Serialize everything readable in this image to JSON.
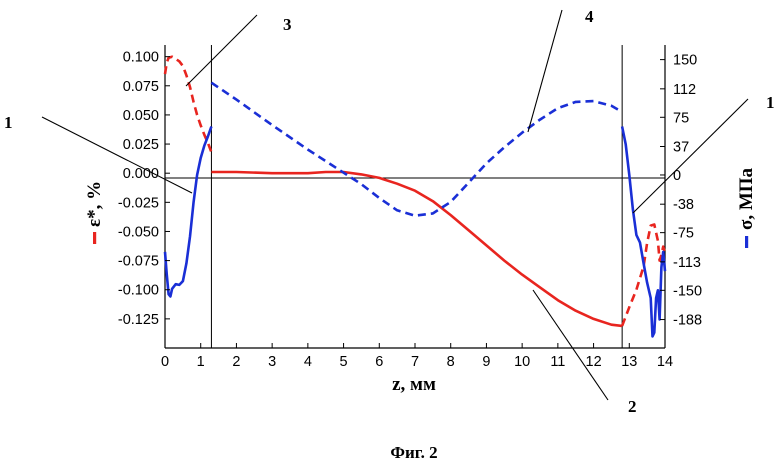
{
  "caption": "Фиг. 2",
  "chart_data": {
    "type": "line",
    "xlabel": "z, мм",
    "ylabel_left": "ε*, %",
    "ylabel_right": "σ, МПа",
    "xlim": [
      0,
      14
    ],
    "ylim_left": [
      -0.15,
      0.11
    ],
    "ylim_right": [
      -225,
      169
    ],
    "grid": false,
    "x_ticks": [
      "0",
      "1",
      "2",
      "3",
      "4",
      "5",
      "6",
      "7",
      "8",
      "9",
      "10",
      "11",
      "12",
      "13",
      "14"
    ],
    "left_ticks": [
      {
        "v": 0.1,
        "label": "0.100"
      },
      {
        "v": 0.075,
        "label": "0.075"
      },
      {
        "v": 0.05,
        "label": "0.050"
      },
      {
        "v": 0.025,
        "label": "0.025"
      },
      {
        "v": 0.0,
        "label": "0.000"
      },
      {
        "v": -0.025,
        "label": "-0.025"
      },
      {
        "v": -0.05,
        "label": "-0.050"
      },
      {
        "v": -0.075,
        "label": "-0.075"
      },
      {
        "v": -0.1,
        "label": "-0.100"
      },
      {
        "v": -0.125,
        "label": "-0.125"
      }
    ],
    "right_ticks": [
      {
        "v": 150,
        "label": "150"
      },
      {
        "v": 112,
        "label": "112"
      },
      {
        "v": 75,
        "label": "75"
      },
      {
        "v": 37,
        "label": "37"
      },
      {
        "v": 0,
        "label": "0"
      },
      {
        "v": -38,
        "label": "-38"
      },
      {
        "v": -75,
        "label": "-75"
      },
      {
        "v": -113,
        "label": "-113"
      },
      {
        "v": -150,
        "label": "-150"
      },
      {
        "v": -188,
        "label": "-188"
      }
    ],
    "boundary_lines_x": [
      1.3,
      12.8
    ],
    "colors": {
      "strain": "#e8251f",
      "stress": "#1a2fd6",
      "axis": "#000000"
    },
    "series": [
      {
        "axis": "left",
        "color": "#e8251f",
        "style": "solid",
        "x": [
          1.3,
          2.0,
          3.0,
          4.0,
          4.5,
          5.0,
          5.5,
          6.0,
          6.5,
          7.0,
          7.5,
          8.0,
          8.5,
          9.0,
          9.5,
          10.0,
          10.5,
          11.0,
          11.5,
          12.0,
          12.5,
          12.8
        ],
        "y": [
          0.001,
          0.001,
          0.0,
          0.0,
          0.001,
          0.001,
          -0.001,
          -0.004,
          -0.009,
          -0.015,
          -0.024,
          -0.036,
          -0.049,
          -0.062,
          -0.075,
          -0.087,
          -0.098,
          -0.109,
          -0.118,
          -0.125,
          -0.13,
          -0.131
        ]
      },
      {
        "axis": "left",
        "color": "#e8251f",
        "style": "dashed",
        "x": [
          0.0,
          0.05,
          0.1,
          0.2,
          0.3,
          0.4,
          0.5,
          0.6,
          0.7,
          0.8,
          0.9,
          1.0,
          1.1,
          1.2,
          1.3
        ],
        "y": [
          0.085,
          0.095,
          0.099,
          0.1,
          0.098,
          0.096,
          0.092,
          0.084,
          0.074,
          0.061,
          0.05,
          0.041,
          0.033,
          0.026,
          0.018
        ]
      },
      {
        "axis": "left",
        "color": "#e8251f",
        "style": "dashed",
        "x": [
          12.8,
          13.0,
          13.2,
          13.4,
          13.5,
          13.6,
          13.7,
          13.8,
          13.85,
          13.9,
          13.95,
          14.0
        ],
        "y": [
          -0.131,
          -0.115,
          -0.1,
          -0.08,
          -0.06,
          -0.045,
          -0.044,
          -0.058,
          -0.075,
          -0.07,
          -0.063,
          -0.068
        ]
      },
      {
        "axis": "right",
        "color": "#1a2fd6",
        "style": "dashed",
        "x": [
          1.3,
          2.0,
          3.0,
          4.0,
          5.0,
          5.5,
          6.0,
          6.5,
          7.0,
          7.5,
          8.0,
          8.5,
          9.0,
          9.5,
          10.0,
          10.5,
          11.0,
          11.5,
          12.0,
          12.5,
          12.8
        ],
        "y": [
          120,
          98,
          65,
          33,
          3,
          -12,
          -30,
          -46,
          -53,
          -50,
          -35,
          -10,
          15,
          36,
          55,
          72,
          87,
          95,
          96,
          90,
          82
        ]
      },
      {
        "axis": "right",
        "color": "#1a2fd6",
        "style": "solid",
        "x": [
          0.0,
          0.05,
          0.1,
          0.15,
          0.2,
          0.3,
          0.4,
          0.5,
          0.6,
          0.7,
          0.8,
          0.9,
          1.0,
          1.1,
          1.2,
          1.3
        ],
        "y": [
          -100,
          -130,
          -155,
          -158,
          -148,
          -142,
          -143,
          -138,
          -115,
          -80,
          -35,
          0,
          22,
          38,
          50,
          63
        ]
      },
      {
        "axis": "right",
        "color": "#1a2fd6",
        "style": "solid",
        "x": [
          12.8,
          12.9,
          13.0,
          13.1,
          13.2,
          13.3,
          13.4,
          13.5,
          13.6,
          13.65,
          13.7,
          13.75,
          13.8,
          13.85,
          13.9,
          13.95,
          14.0
        ],
        "y": [
          63,
          40,
          0,
          -45,
          -78,
          -88,
          -115,
          -140,
          -160,
          -210,
          -205,
          -160,
          -150,
          -188,
          -120,
          -100,
          -125
        ]
      }
    ],
    "annotations": [
      {
        "text": "1",
        "pos": "left"
      },
      {
        "text": "3",
        "pos": "top-left"
      },
      {
        "text": "4",
        "pos": "top-right"
      },
      {
        "text": "1",
        "pos": "right"
      },
      {
        "text": "2",
        "pos": "bottom-right"
      }
    ]
  }
}
